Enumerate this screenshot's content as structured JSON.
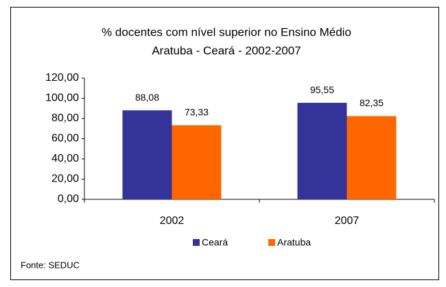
{
  "chart_data": {
    "type": "bar",
    "title": "% docentes com nível superior no Ensino Médio",
    "subtitle": "Aratuba - Ceará - 2002-2007",
    "categories": [
      "2002",
      "2007"
    ],
    "series": [
      {
        "name": "Ceará",
        "color": "#333399",
        "values": [
          88.08,
          95.55
        ],
        "value_labels": [
          "88,08",
          "95,55"
        ]
      },
      {
        "name": "Aratuba",
        "color": "#FF6600",
        "values": [
          73.33,
          82.35
        ],
        "value_labels": [
          "73,33",
          "82,35"
        ]
      }
    ],
    "ylim": [
      0,
      120
    ],
    "yticks": [
      {
        "value": 0,
        "label": "0,00"
      },
      {
        "value": 20,
        "label": "20,00"
      },
      {
        "value": 40,
        "label": "40,00"
      },
      {
        "value": 60,
        "label": "60,00"
      },
      {
        "value": 80,
        "label": "80,00"
      },
      {
        "value": 100,
        "label": "100,00"
      },
      {
        "value": 120,
        "label": "120,00"
      }
    ],
    "legend": "bottom",
    "note": "Fonte: SEDUC"
  }
}
